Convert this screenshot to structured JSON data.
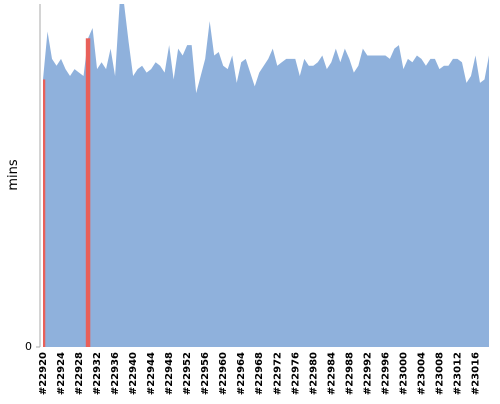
{
  "chart_data": {
    "type": "area",
    "ylabel": "mins",
    "categories": [
      "#22920",
      null,
      null,
      null,
      "#22924",
      null,
      null,
      null,
      "#22928",
      null,
      null,
      null,
      "#22932",
      null,
      null,
      null,
      "#22936",
      null,
      null,
      null,
      "#22940",
      null,
      null,
      null,
      "#22944",
      null,
      null,
      null,
      "#22948",
      null,
      null,
      null,
      "#22952",
      null,
      null,
      null,
      "#22956",
      null,
      null,
      null,
      "#22960",
      null,
      null,
      null,
      "#22964",
      null,
      null,
      null,
      "#22968",
      null,
      null,
      null,
      "#22972",
      null,
      null,
      null,
      "#22976",
      null,
      null,
      null,
      "#22980",
      null,
      null,
      null,
      "#22984",
      null,
      null,
      null,
      "#22988",
      null,
      null,
      null,
      "#22992",
      null,
      null,
      null,
      "#22996",
      null,
      null,
      null,
      "#23000",
      null,
      null,
      null,
      "#23004",
      null,
      null,
      null,
      "#23008",
      null,
      null,
      null,
      "#23012",
      null,
      null,
      null,
      "#23016",
      null,
      null,
      null
    ],
    "series": [
      {
        "color": "#8fb1dc",
        "values": [
          78,
          92,
          84,
          82,
          84,
          81,
          79,
          81,
          80,
          79,
          90,
          93,
          81,
          83,
          81,
          87,
          79,
          100,
          100,
          89,
          79,
          81,
          82,
          80,
          81,
          83,
          82,
          80,
          88,
          78,
          87,
          85,
          88,
          88,
          74,
          79,
          84,
          95,
          85,
          86,
          82,
          81,
          85,
          77,
          83,
          84,
          80,
          76,
          80,
          82,
          84,
          87,
          82,
          83,
          84,
          84,
          84,
          79,
          84,
          82,
          82,
          83,
          85,
          81,
          83,
          87,
          83,
          87,
          84,
          80,
          82,
          87,
          85,
          85,
          85,
          85,
          85,
          84,
          87,
          88,
          81,
          84,
          83,
          85,
          84,
          82,
          84,
          84,
          81,
          82,
          82,
          84,
          84,
          83,
          77,
          79,
          85,
          77,
          78,
          85
        ]
      },
      {
        "color": "#e8605a",
        "values": [
          78,
          null,
          null,
          null,
          null,
          null,
          null,
          null,
          null,
          null,
          90,
          null,
          null,
          null,
          null,
          null,
          null,
          null,
          null,
          null,
          null,
          null,
          null,
          null,
          null,
          null,
          null,
          null,
          null,
          null,
          null,
          null,
          null,
          null,
          null,
          null,
          null,
          null,
          null,
          null,
          null,
          null,
          null,
          null,
          null,
          null,
          null,
          null,
          null,
          null,
          null,
          null,
          null,
          null,
          null,
          null,
          null,
          null,
          null,
          null,
          null,
          null,
          null,
          null,
          null,
          null,
          null,
          null,
          null,
          null,
          null,
          null,
          null,
          null,
          null,
          null,
          null,
          null,
          null,
          null,
          null,
          null,
          null,
          null,
          null,
          null,
          null,
          null,
          null,
          null,
          null,
          null,
          null,
          null,
          null,
          null,
          null,
          null,
          null,
          null
        ]
      }
    ],
    "ylim": [
      0,
      100
    ],
    "yticks": [
      0
    ]
  }
}
